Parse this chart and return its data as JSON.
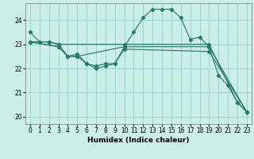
{
  "xlabel": "Humidex (Indice chaleur)",
  "ylabel": "",
  "background_color": "#cceee8",
  "grid_color": "#99d5cc",
  "line_color": "#2a7a6a",
  "xlim": [
    -0.5,
    23.5
  ],
  "ylim": [
    19.7,
    24.7
  ],
  "xticks": [
    0,
    1,
    2,
    3,
    4,
    5,
    6,
    7,
    8,
    9,
    10,
    11,
    12,
    13,
    14,
    15,
    16,
    17,
    18,
    19,
    20,
    21,
    22,
    23
  ],
  "yticks": [
    20,
    21,
    22,
    23,
    24
  ],
  "lines": [
    {
      "x": [
        0,
        1,
        2,
        3,
        4,
        5,
        6,
        7,
        8,
        9,
        10,
        11,
        12,
        13,
        14,
        15,
        16,
        17,
        18,
        19,
        20,
        21,
        22,
        23
      ],
      "y": [
        23.5,
        23.1,
        23.1,
        23.0,
        22.5,
        22.6,
        22.2,
        22.1,
        22.2,
        22.2,
        22.9,
        23.5,
        24.1,
        24.45,
        24.45,
        24.45,
        24.1,
        23.2,
        23.3,
        22.9,
        21.7,
        21.3,
        20.6,
        20.2
      ]
    },
    {
      "x": [
        0,
        1,
        2,
        3,
        10,
        19,
        22,
        23
      ],
      "y": [
        23.1,
        23.1,
        23.1,
        23.0,
        23.0,
        23.0,
        20.6,
        20.2
      ]
    },
    {
      "x": [
        0,
        3,
        4,
        5,
        10,
        19,
        23
      ],
      "y": [
        23.1,
        22.9,
        22.5,
        22.5,
        22.9,
        22.9,
        20.2
      ]
    },
    {
      "x": [
        0,
        3,
        4,
        5,
        6,
        7,
        8,
        9,
        10,
        19,
        23
      ],
      "y": [
        23.1,
        22.9,
        22.5,
        22.5,
        22.2,
        22.0,
        22.1,
        22.2,
        22.8,
        22.7,
        20.2
      ]
    }
  ]
}
